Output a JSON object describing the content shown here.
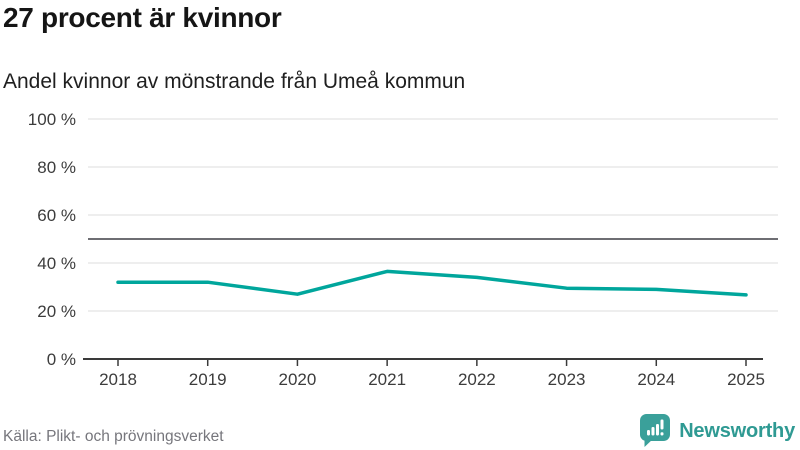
{
  "header": {
    "title": "27 procent är kvinnor",
    "subtitle": "Andel kvinnor av mönstrande från Umeå kommun"
  },
  "footer": {
    "source": "Källa: Plikt- och prövningsverket",
    "brand": "Newsworthy",
    "brand_icon": "newsworthy-speech-bubble-bar-chart-icon"
  },
  "chart_data": {
    "type": "line",
    "title": "27 procent är kvinnor",
    "subtitle": "Andel kvinnor av mönstrande från Umeå kommun",
    "x": [
      2018,
      2019,
      2020,
      2021,
      2022,
      2023,
      2024,
      2025
    ],
    "series": [
      {
        "name": "Andel kvinnor av mönstrande",
        "values": [
          32,
          32,
          27,
          36.5,
          34,
          29.5,
          29,
          26.7
        ]
      }
    ],
    "ylim": [
      0,
      100
    ],
    "yticks": [
      0,
      20,
      40,
      60,
      80,
      100
    ],
    "ytick_format": "{v} %",
    "reference_line": 50,
    "grid": true,
    "legend": "none",
    "colors": {
      "line": "#00a69c",
      "reference": "#6e6e73",
      "grid": "#e8e8e8",
      "axis": "#3a3a3a",
      "tick_label": "#3c3c3c",
      "brand_teal": "#3aa09a"
    }
  }
}
